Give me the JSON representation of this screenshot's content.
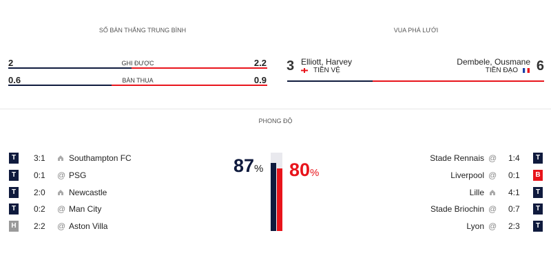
{
  "average_goals": {
    "title": "SỐ BÀN THẮNG TRUNG BÌNH",
    "home_color": "#0f1a3d",
    "away_color": "#e8141b",
    "rows": [
      {
        "label": "GHI ĐƯỢC",
        "home": 2,
        "away": 2.2
      },
      {
        "label": "BÀN THUA",
        "home": 0.6,
        "away": 0.9
      }
    ]
  },
  "top_scorer": {
    "title": "VUA PHÁ LƯỚI",
    "home": {
      "goals": 3,
      "name": "Elliott, Harvey",
      "position": "TIỀN VỆ"
    },
    "away": {
      "goals": 6,
      "name": "Dembele, Ousmane",
      "position": "TIỀN ĐẠO"
    }
  },
  "form": {
    "title": "PHONG ĐỘ",
    "unit": "%",
    "home": {
      "percent": 87,
      "matches": [
        {
          "result": "T",
          "color": "#0f1a3d",
          "score": "3:1",
          "opponent": "Southampton FC"
        },
        {
          "result": "T",
          "color": "#0f1a3d",
          "score": "0:1",
          "at": "@",
          "opponent": "PSG"
        },
        {
          "result": "T",
          "color": "#0f1a3d",
          "score": "2:0",
          "opponent": "Newcastle"
        },
        {
          "result": "T",
          "color": "#0f1a3d",
          "score": "0:2",
          "at": "@",
          "opponent": "Man City"
        },
        {
          "result": "H",
          "color": "#9a9a9a",
          "score": "2:2",
          "at": "@",
          "opponent": "Aston Villa"
        }
      ]
    },
    "away": {
      "percent": 80,
      "matches": [
        {
          "result": "T",
          "color": "#0f1a3d",
          "score": "1:4",
          "at": "@",
          "opponent": "Stade Rennais"
        },
        {
          "result": "B",
          "color": "#e8141b",
          "score": "0:1",
          "at": "@",
          "opponent": "Liverpool"
        },
        {
          "result": "T",
          "color": "#0f1a3d",
          "score": "4:1",
          "opponent": "Lille"
        },
        {
          "result": "T",
          "color": "#0f1a3d",
          "score": "0:7",
          "at": "@",
          "opponent": "Stade Briochin"
        },
        {
          "result": "T",
          "color": "#0f1a3d",
          "score": "2:3",
          "at": "@",
          "opponent": "Lyon"
        }
      ]
    }
  }
}
